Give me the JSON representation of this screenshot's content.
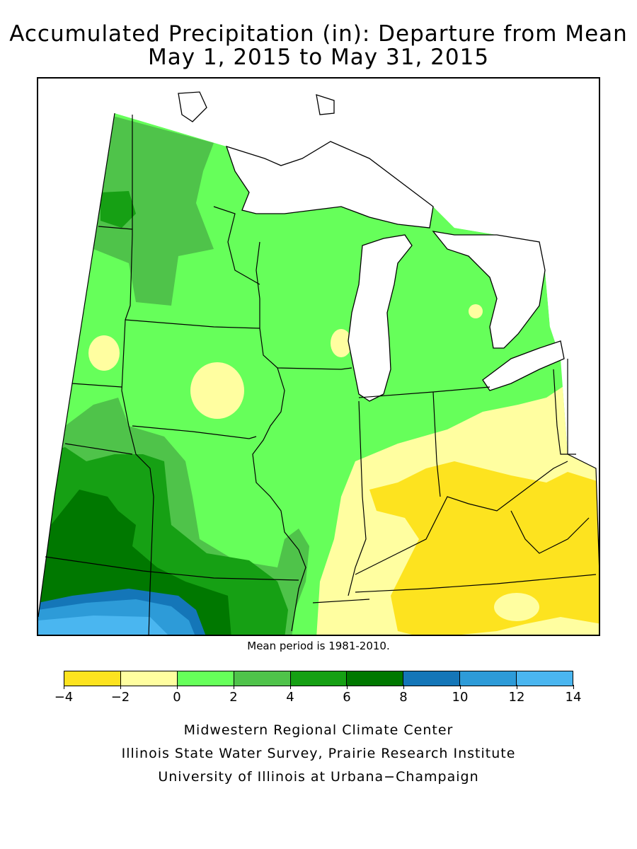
{
  "title_line1": "Accumulated Precipitation (in): Departure from Mean",
  "title_line2": "May 1, 2015 to May 31, 2015",
  "mean_period_note": "Mean period is 1981-2010.",
  "legend": {
    "bins": [
      {
        "from": -4,
        "to": -2,
        "color": "#fde31f"
      },
      {
        "from": -2,
        "to": 0,
        "color": "#fffea0"
      },
      {
        "from": 0,
        "to": 2,
        "color": "#66ff5a"
      },
      {
        "from": 2,
        "to": 4,
        "color": "#4fc34a"
      },
      {
        "from": 4,
        "to": 6,
        "color": "#16a014"
      },
      {
        "from": 6,
        "to": 8,
        "color": "#007800"
      },
      {
        "from": 8,
        "to": 10,
        "color": "#1476b8"
      },
      {
        "from": 10,
        "to": 12,
        "color": "#2d9bd8"
      },
      {
        "from": 12,
        "to": 14,
        "color": "#4ab6f0"
      }
    ],
    "tick_labels": [
      "−4",
      "−2",
      "0",
      "2",
      "4",
      "6",
      "8",
      "10",
      "12",
      "14"
    ]
  },
  "credits": [
    "Midwestern Regional Climate Center",
    "Illinois State Water Survey, Prairie Research Institute",
    "University of Illinois at Urbana−Champaign"
  ],
  "colors": {
    "lake": "#ffffff",
    "border": "#000000",
    "grid": "#9a9a9a"
  }
}
